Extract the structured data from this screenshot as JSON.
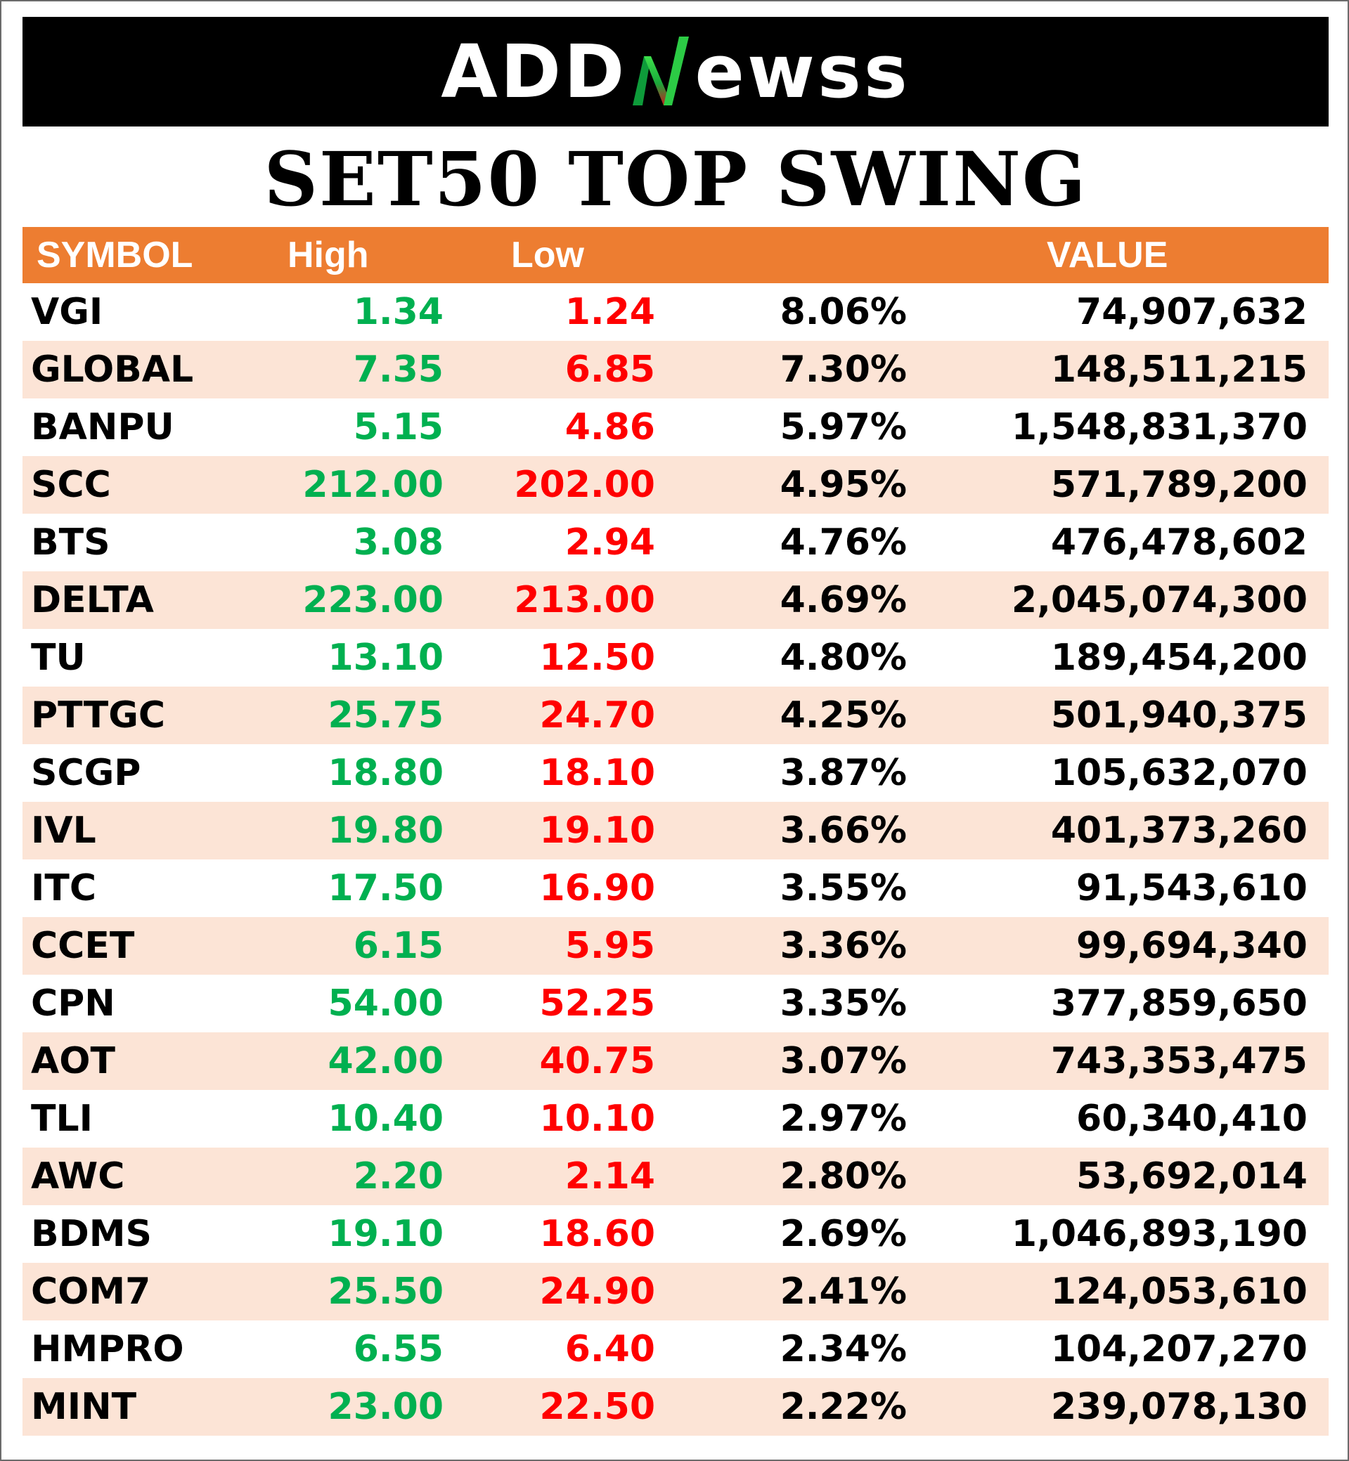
{
  "brand": {
    "name_part1": "ADD",
    "name_part2": "ewss",
    "accent_colors": [
      "#1DBA3C",
      "#E0201B"
    ]
  },
  "title": "SET50 TOP SWING",
  "table": {
    "header": {
      "symbol": "SYMBOL",
      "high": "High",
      "low": "Low",
      "pct": "",
      "value": "VALUE"
    },
    "rows": [
      {
        "symbol": "VGI",
        "high": "1.34",
        "low": "1.24",
        "pct": "8.06%",
        "value": "74,907,632"
      },
      {
        "symbol": "GLOBAL",
        "high": "7.35",
        "low": "6.85",
        "pct": "7.30%",
        "value": "148,511,215"
      },
      {
        "symbol": "BANPU",
        "high": "5.15",
        "low": "4.86",
        "pct": "5.97%",
        "value": "1,548,831,370"
      },
      {
        "symbol": "SCC",
        "high": "212.00",
        "low": "202.00",
        "pct": "4.95%",
        "value": "571,789,200"
      },
      {
        "symbol": "BTS",
        "high": "3.08",
        "low": "2.94",
        "pct": "4.76%",
        "value": "476,478,602"
      },
      {
        "symbol": "DELTA",
        "high": "223.00",
        "low": "213.00",
        "pct": "4.69%",
        "value": "2,045,074,300"
      },
      {
        "symbol": "TU",
        "high": "13.10",
        "low": "12.50",
        "pct": "4.80%",
        "value": "189,454,200"
      },
      {
        "symbol": "PTTGC",
        "high": "25.75",
        "low": "24.70",
        "pct": "4.25%",
        "value": "501,940,375"
      },
      {
        "symbol": "SCGP",
        "high": "18.80",
        "low": "18.10",
        "pct": "3.87%",
        "value": "105,632,070"
      },
      {
        "symbol": "IVL",
        "high": "19.80",
        "low": "19.10",
        "pct": "3.66%",
        "value": "401,373,260"
      },
      {
        "symbol": "ITC",
        "high": "17.50",
        "low": "16.90",
        "pct": "3.55%",
        "value": "91,543,610"
      },
      {
        "symbol": "CCET",
        "high": "6.15",
        "low": "5.95",
        "pct": "3.36%",
        "value": "99,694,340"
      },
      {
        "symbol": "CPN",
        "high": "54.00",
        "low": "52.25",
        "pct": "3.35%",
        "value": "377,859,650"
      },
      {
        "symbol": "AOT",
        "high": "42.00",
        "low": "40.75",
        "pct": "3.07%",
        "value": "743,353,475"
      },
      {
        "symbol": "TLI",
        "high": "10.40",
        "low": "10.10",
        "pct": "2.97%",
        "value": "60,340,410"
      },
      {
        "symbol": "AWC",
        "high": "2.20",
        "low": "2.14",
        "pct": "2.80%",
        "value": "53,692,014"
      },
      {
        "symbol": "BDMS",
        "high": "19.10",
        "low": "18.60",
        "pct": "2.69%",
        "value": "1,046,893,190"
      },
      {
        "symbol": "COM7",
        "high": "25.50",
        "low": "24.90",
        "pct": "2.41%",
        "value": "124,053,610"
      },
      {
        "symbol": "HMPRO",
        "high": "6.55",
        "low": "6.40",
        "pct": "2.34%",
        "value": "104,207,270"
      },
      {
        "symbol": "MINT",
        "high": "23.00",
        "low": "22.50",
        "pct": "2.22%",
        "value": "239,078,130"
      }
    ]
  }
}
